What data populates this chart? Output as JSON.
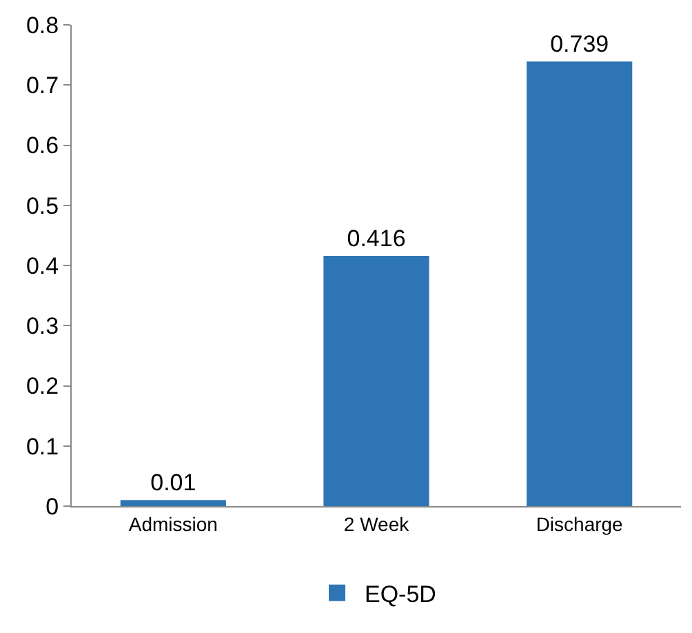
{
  "chart_data": {
    "type": "bar",
    "categories": [
      "Admission",
      "2 Week",
      "Discharge"
    ],
    "series": [
      {
        "name": "EQ-5D",
        "color": "#2e75b6",
        "values": [
          0.01,
          0.416,
          0.739
        ]
      }
    ],
    "ylim": [
      0,
      0.8
    ],
    "yticks": [
      0,
      0.1,
      0.2,
      0.3,
      0.4,
      0.5,
      0.6,
      0.7,
      0.8
    ],
    "grid": false,
    "legend": "bottom",
    "data_labels": true
  }
}
